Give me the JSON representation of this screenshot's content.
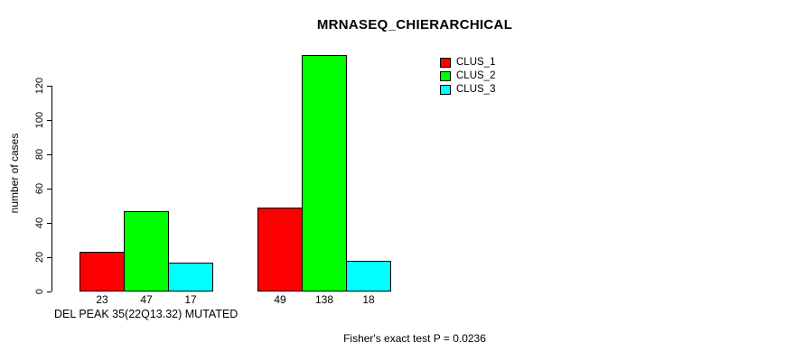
{
  "colors": {
    "background": "#ffffff",
    "axis": "#000000",
    "text": "#000000",
    "clus_1": "#ff0000",
    "clus_2": "#00ff00",
    "clus_3": "#00ffff"
  },
  "chart_data": {
    "type": "bar",
    "title": "MRNASEQ_CHIERARCHICAL",
    "xlabel": "DEL PEAK 35(22Q13.32) MUTATED",
    "ylabel": "number of cases",
    "annotation": "Fisher's exact test P = 0.0236",
    "yticks": [
      0,
      20,
      40,
      60,
      80,
      100,
      120
    ],
    "ylim": [
      0,
      138
    ],
    "grid": false,
    "legend_position": "top-right",
    "groups": [
      "group-1",
      "group-2"
    ],
    "series": [
      {
        "name": "CLUS_1",
        "color": "#ff0000",
        "values": [
          23,
          49
        ]
      },
      {
        "name": "CLUS_2",
        "color": "#00ff00",
        "values": [
          47,
          138
        ]
      },
      {
        "name": "CLUS_3",
        "color": "#00ffff",
        "values": [
          17,
          18
        ]
      }
    ],
    "bar_value_labels": [
      [
        23,
        47,
        17
      ],
      [
        49,
        138,
        18
      ]
    ]
  }
}
